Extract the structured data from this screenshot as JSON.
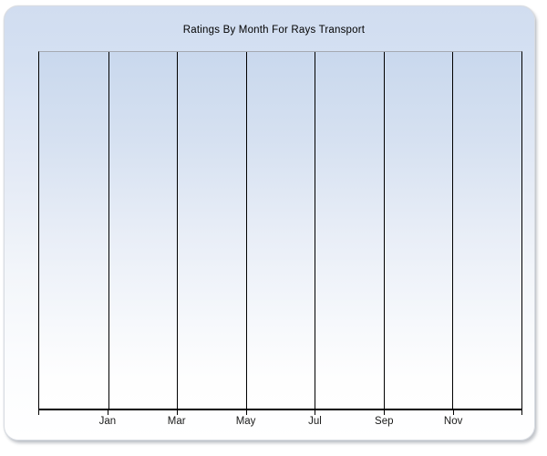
{
  "chart": {
    "title": "Ratings By Month For Rays Transport"
  },
  "chart_data": {
    "type": "line",
    "title": "Ratings By Month For Rays Transport",
    "xlabel": "",
    "ylabel": "",
    "x_tick_labels": [
      "Jan",
      "Mar",
      "May",
      "Jul",
      "Sep",
      "Nov"
    ],
    "x_label_interval_months": 2,
    "series": [],
    "plot_area_empty": true,
    "legend": "none",
    "grid": "vertical gridlines only, one per labeled tick",
    "y_tick_labels": []
  },
  "colors": {
    "page_background": "#ffffff",
    "panel_gradient_top": "#d1ddf0",
    "panel_gradient_bottom": "#ffffff",
    "plot_gradient_top": "#c9d8ed",
    "plot_gradient_bottom": "#ffffff",
    "plot_top_border": "#a5aab2",
    "gridline": "#000000",
    "axis_line": "#000000",
    "title_text": "#000000",
    "tick_label_text": "#1a1a1a"
  }
}
